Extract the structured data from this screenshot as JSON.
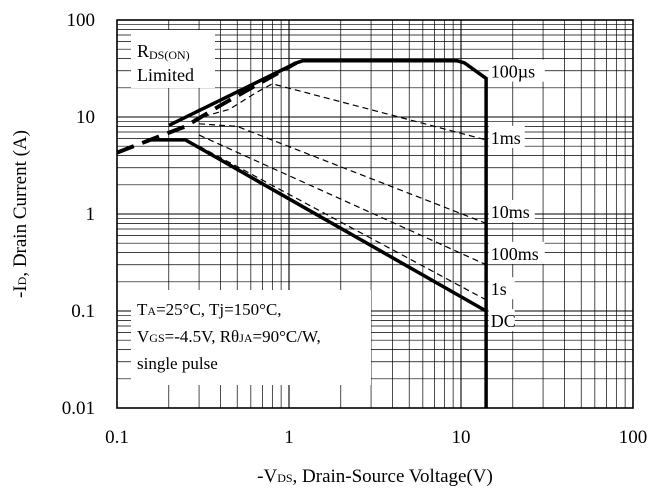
{
  "chart_data": {
    "type": "line",
    "xscale": "log",
    "yscale": "log",
    "xlim": [
      0.1,
      100
    ],
    "ylim": [
      0.01,
      100
    ],
    "xlabel": {
      "prefix": "-V",
      "sub": "DS",
      "suffix": ", Drain-Source Voltage(V)"
    },
    "ylabel": {
      "prefix": "-I",
      "sub": "D",
      "suffix": ", Drain Current (A)"
    },
    "xticks": [
      {
        "value": 0.1,
        "label": "0.1"
      },
      {
        "value": 1,
        "label": "1"
      },
      {
        "value": 10,
        "label": "10"
      },
      {
        "value": 100,
        "label": "100"
      }
    ],
    "yticks": [
      {
        "value": 0.01,
        "label": "0.01"
      },
      {
        "value": 0.1,
        "label": "0.1"
      },
      {
        "value": 1,
        "label": "1"
      },
      {
        "value": 10,
        "label": "10"
      },
      {
        "value": 100,
        "label": "100"
      }
    ],
    "grid": true,
    "rds_limit_label": {
      "line1_prefix": "R",
      "line1_sub": "DS(ON)",
      "line2": "Limited"
    },
    "conditions": {
      "line1": [
        {
          "t": "T"
        },
        {
          "t": "A",
          "sub": true
        },
        {
          "t": "=25°C, Tj=150°C,"
        }
      ],
      "line2": [
        {
          "t": "V"
        },
        {
          "t": "GS",
          "sub": true
        },
        {
          "t": "=-4.5V, Rθ"
        },
        {
          "t": "JA",
          "sub": true
        },
        {
          "t": "=90°C/W,"
        }
      ],
      "line3": [
        {
          "t": "single pulse"
        }
      ]
    },
    "rds_on_line": [
      [
        0.1,
        4.3
      ],
      [
        0.25,
        8.0
      ],
      [
        0.4,
        13.2
      ],
      [
        0.65,
        21.5
      ],
      [
        1.1,
        36.0
      ]
    ],
    "series": [
      {
        "name": "100µs",
        "style": "solid-thick",
        "label_at": [
          14.5,
          28
        ],
        "points": [
          [
            0.2,
            8.2
          ],
          [
            1.1,
            36
          ],
          [
            1.2,
            38
          ],
          [
            9.5,
            38
          ],
          [
            10.5,
            36
          ],
          [
            14,
            25
          ],
          [
            14,
            0.01
          ]
        ]
      },
      {
        "name": "1ms",
        "style": "dashed",
        "label_at": [
          14.5,
          5.8
        ],
        "points": [
          [
            0.28,
            9.5
          ],
          [
            0.45,
            12
          ],
          [
            0.65,
            18
          ],
          [
            0.8,
            22
          ],
          [
            14,
            5.8
          ]
        ]
      },
      {
        "name": "10ms",
        "style": "dashed",
        "label_at": [
          14.5,
          1.0
        ],
        "points": [
          [
            0.3,
            8.5
          ],
          [
            0.5,
            8.0
          ],
          [
            14,
            0.8
          ]
        ]
      },
      {
        "name": "100ms",
        "style": "dashed",
        "label_at": [
          14.5,
          0.37
        ],
        "points": [
          [
            0.3,
            6.5
          ],
          [
            14,
            0.3
          ]
        ]
      },
      {
        "name": "1s",
        "style": "dashed",
        "label_at": [
          14.5,
          0.16
        ],
        "points": [
          [
            0.3,
            5.0
          ],
          [
            14,
            0.13
          ]
        ]
      },
      {
        "name": "DC",
        "style": "solid-thick",
        "label_at": [
          14.5,
          0.075
        ],
        "points": [
          [
            0.15,
            5.8
          ],
          [
            0.25,
            5.8
          ],
          [
            14,
            0.1
          ]
        ]
      }
    ]
  }
}
